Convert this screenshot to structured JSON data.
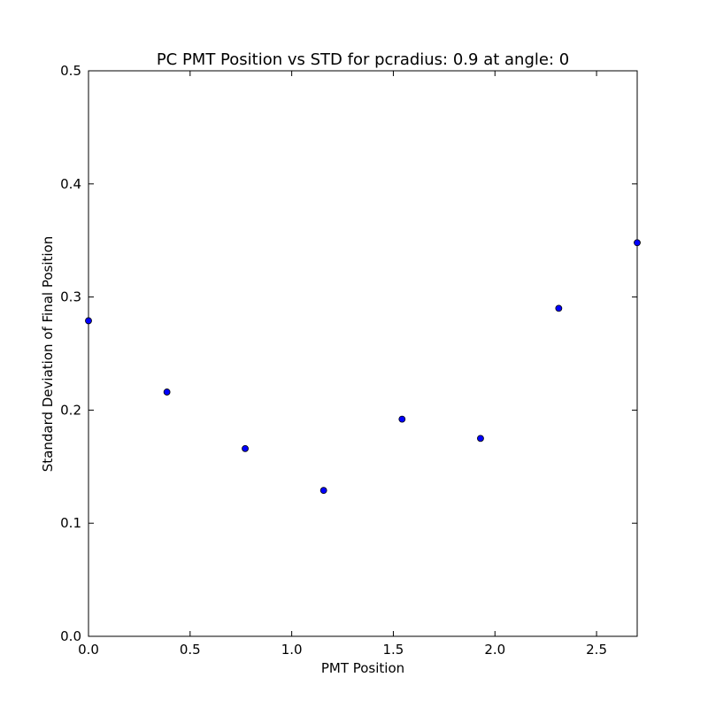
{
  "chart_data": {
    "type": "scatter",
    "title": "PC PMT Position vs STD for pcradius: 0.9 at angle: 0",
    "xlabel": "PMT Position",
    "ylabel": "Standard Deviation of Final Position",
    "xlim": [
      0.0,
      2.7
    ],
    "ylim": [
      0.0,
      0.5
    ],
    "xticks": [
      0.0,
      0.5,
      1.0,
      1.5,
      2.0,
      2.5
    ],
    "xtick_labels": [
      "0.0",
      "0.5",
      "1.0",
      "1.5",
      "2.0",
      "2.5"
    ],
    "yticks": [
      0.0,
      0.1,
      0.2,
      0.3,
      0.4,
      0.5
    ],
    "ytick_labels": [
      "0.0",
      "0.1",
      "0.2",
      "0.3",
      "0.4",
      "0.5"
    ],
    "grid": false,
    "series": [
      {
        "x": [
          0.0,
          0.386,
          0.771,
          1.157,
          1.543,
          1.929,
          2.314,
          2.7
        ],
        "y": [
          0.279,
          0.216,
          0.166,
          0.129,
          0.192,
          0.175,
          0.29,
          0.348
        ]
      }
    ],
    "colors": {
      "marker_fill": "#0000ff",
      "marker_edge": "#000000",
      "axes": "#000000"
    }
  }
}
